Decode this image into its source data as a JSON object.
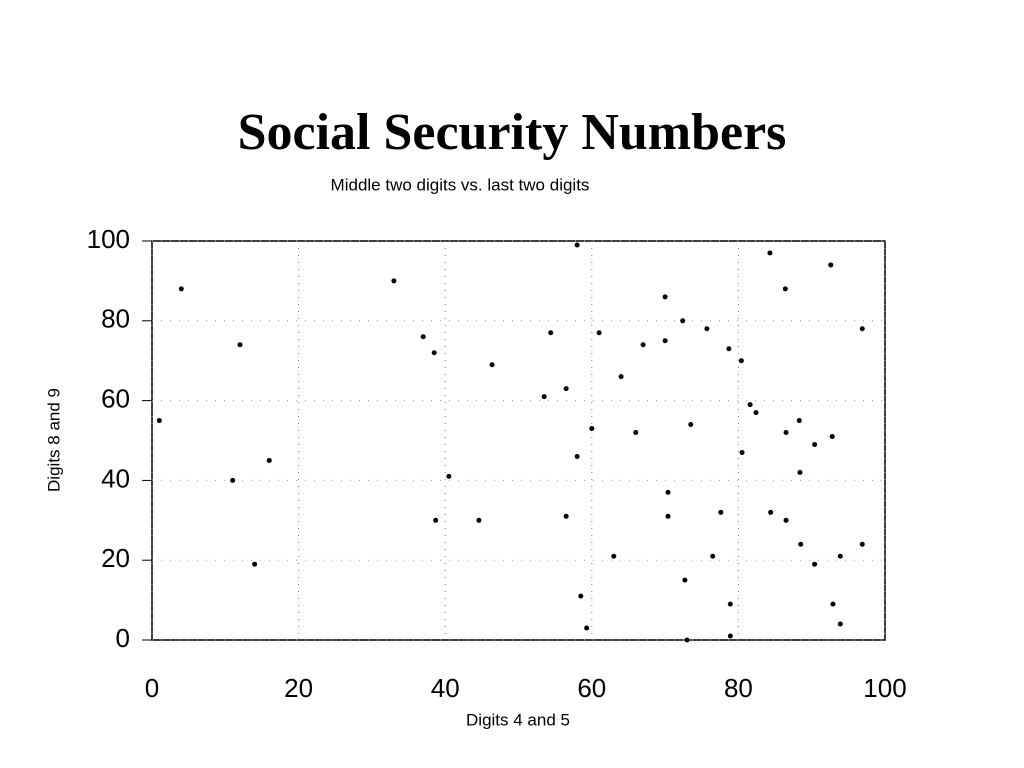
{
  "chart_data": {
    "type": "scatter",
    "title": "Social Security Numbers",
    "subtitle": "Middle two digits vs. last two digits",
    "x_label": "Digits 4 and 5",
    "y_label": "Digits 8 and 9",
    "color": "#000000",
    "grid": true,
    "xlim": [
      0,
      100
    ],
    "ylim": [
      0,
      100
    ],
    "xticks": [
      0,
      20,
      40,
      60,
      80,
      100
    ],
    "yticks": [
      0,
      20,
      40,
      60,
      80,
      100
    ],
    "x": [
      1,
      4,
      12,
      11,
      16,
      14,
      33,
      37,
      38.5,
      40.5,
      38.7,
      44.6,
      46.4,
      54.4,
      53.5,
      56.5,
      56.5,
      58,
      58,
      58.5,
      59.3,
      60,
      61,
      63,
      64,
      66,
      67,
      70,
      70,
      70.4,
      70.4,
      72.4,
      72.7,
      73,
      73.5,
      75.7,
      76.5,
      77.6,
      78.7,
      78.9,
      78.9,
      80.4,
      80.5,
      81.6,
      82.4,
      84.3,
      84.4,
      86.4,
      86.5,
      86.5,
      88.3,
      88.4,
      88.5,
      90.4,
      90.4,
      92.6,
      92.8,
      92.9,
      93.9,
      93.9,
      96.9,
      96.9
    ],
    "values": [
      55,
      88,
      74,
      40,
      45,
      19,
      90,
      76,
      72,
      41,
      30,
      30,
      69,
      77,
      61,
      63,
      31,
      99,
      46,
      11,
      3,
      53,
      77,
      21,
      66,
      52,
      74,
      86,
      75,
      37,
      31,
      80,
      15,
      0,
      54,
      78,
      21,
      32,
      73,
      9,
      1,
      70,
      47,
      59,
      57,
      97,
      32,
      88,
      52,
      30,
      55,
      42,
      24,
      49,
      19,
      94,
      51,
      9,
      4,
      21,
      78,
      24
    ]
  }
}
